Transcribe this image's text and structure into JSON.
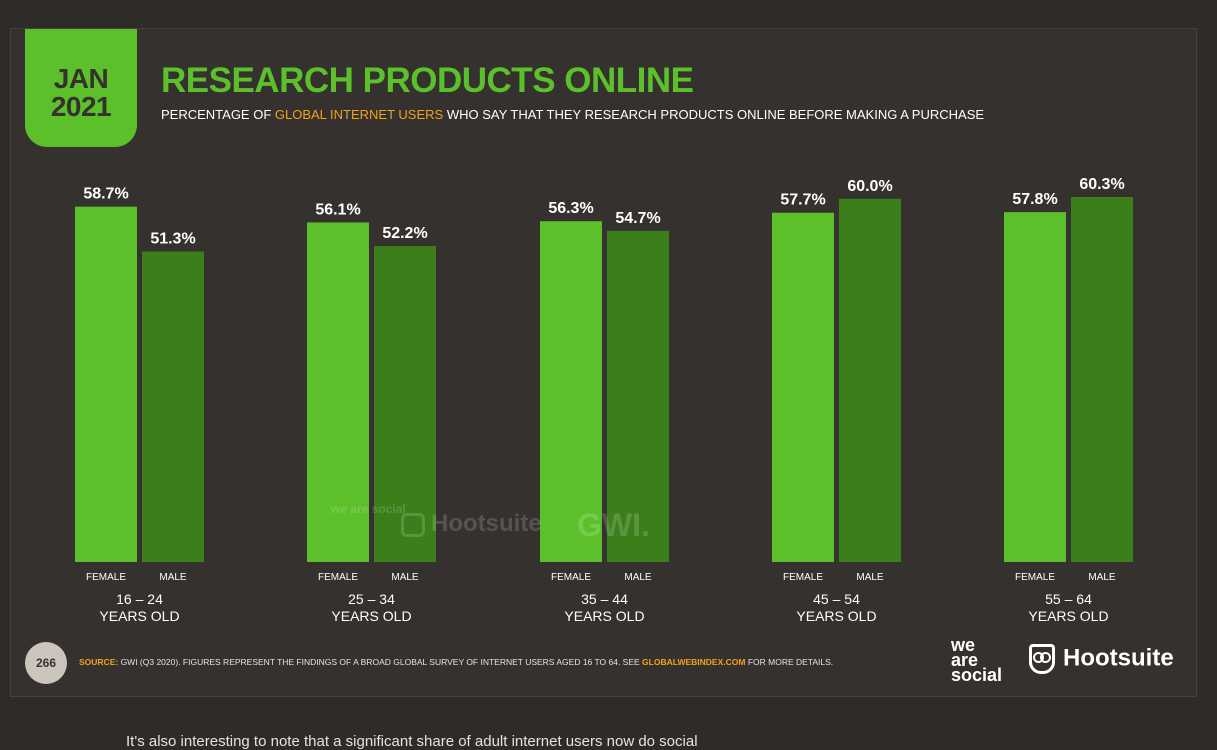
{
  "header": {
    "date_month": "JAN",
    "date_year": "2021",
    "title": "RESEARCH PRODUCTS ONLINE",
    "subtitle_pre": "PERCENTAGE OF ",
    "subtitle_highlight": "GLOBAL INTERNET USERS",
    "subtitle_post": " WHO SAY THAT THEY RESEARCH PRODUCTS ONLINE BEFORE MAKING A PURCHASE"
  },
  "colors": {
    "female": "#5cc02b",
    "male": "#3a7f1a",
    "accent": "#f4a11c",
    "background": "#35312e"
  },
  "chart_data": {
    "type": "bar",
    "categories": [
      "16 – 24",
      "25 – 34",
      "35 – 44",
      "45 – 54",
      "55 – 64"
    ],
    "category_suffix": "YEARS OLD",
    "series": [
      {
        "name": "FEMALE",
        "values": [
          58.7,
          56.1,
          56.3,
          57.7,
          57.8
        ]
      },
      {
        "name": "MALE",
        "values": [
          51.3,
          52.2,
          54.7,
          60.0,
          60.3
        ]
      }
    ],
    "data_labels": [
      [
        "58.7%",
        "56.1%",
        "56.3%",
        "57.7%",
        "57.8%"
      ],
      [
        "51.3%",
        "52.2%",
        "54.7%",
        "60.0%",
        "60.3%"
      ]
    ],
    "unit": "%",
    "ylim": [
      0,
      60.3
    ],
    "grid": false
  },
  "watermark": {
    "brand1": "we are social",
    "brand2": "Hootsuite",
    "brand3": "GWI."
  },
  "footer": {
    "page_number": "266",
    "source_label": "SOURCE:",
    "source_text": " GWI (Q3 2020). FIGURES REPRESENT THE FINDINGS OF A BROAD GLOBAL SURVEY OF INTERNET USERS AGED 16 TO 64. SEE ",
    "source_link": "GLOBALWEBINDEX.COM",
    "source_end": " FOR MORE DETAILS.",
    "logo_was_1": "we",
    "logo_was_2": "are",
    "logo_was_3": "social",
    "logo_hootsuite": "Hootsuite"
  },
  "caption": "It's also interesting to note that a significant share of adult internet users now do social"
}
